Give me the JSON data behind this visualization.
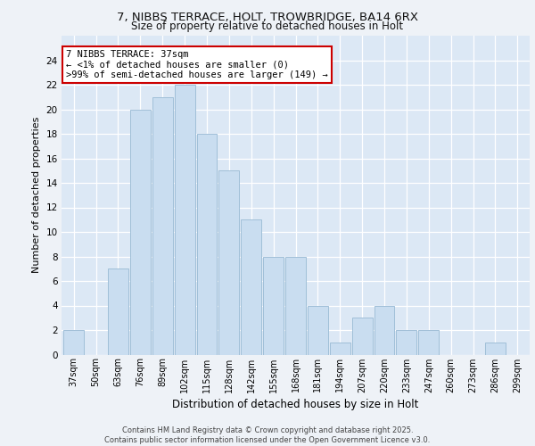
{
  "title1": "7, NIBBS TERRACE, HOLT, TROWBRIDGE, BA14 6RX",
  "title2": "Size of property relative to detached houses in Holt",
  "xlabel": "Distribution of detached houses by size in Holt",
  "ylabel": "Number of detached properties",
  "categories": [
    "37sqm",
    "50sqm",
    "63sqm",
    "76sqm",
    "89sqm",
    "102sqm",
    "115sqm",
    "128sqm",
    "142sqm",
    "155sqm",
    "168sqm",
    "181sqm",
    "194sqm",
    "207sqm",
    "220sqm",
    "233sqm",
    "247sqm",
    "260sqm",
    "273sqm",
    "286sqm",
    "299sqm"
  ],
  "values": [
    2,
    0,
    7,
    20,
    21,
    22,
    18,
    15,
    11,
    8,
    8,
    4,
    1,
    3,
    4,
    2,
    2,
    0,
    0,
    1,
    0
  ],
  "bar_color": "#c9ddf0",
  "bar_edgecolor": "#a0bfd8",
  "annotation_title": "7 NIBBS TERRACE: 37sqm",
  "annotation_line1": "← <1% of detached houses are smaller (0)",
  "annotation_line2": ">99% of semi-detached houses are larger (149) →",
  "annotation_box_color": "#ffffff",
  "annotation_box_edgecolor": "#cc0000",
  "ylim": [
    0,
    26
  ],
  "yticks": [
    0,
    2,
    4,
    6,
    8,
    10,
    12,
    14,
    16,
    18,
    20,
    22,
    24
  ],
  "footer1": "Contains HM Land Registry data © Crown copyright and database right 2025.",
  "footer2": "Contains public sector information licensed under the Open Government Licence v3.0.",
  "bg_color": "#eef2f7",
  "plot_bg_color": "#dce8f5"
}
